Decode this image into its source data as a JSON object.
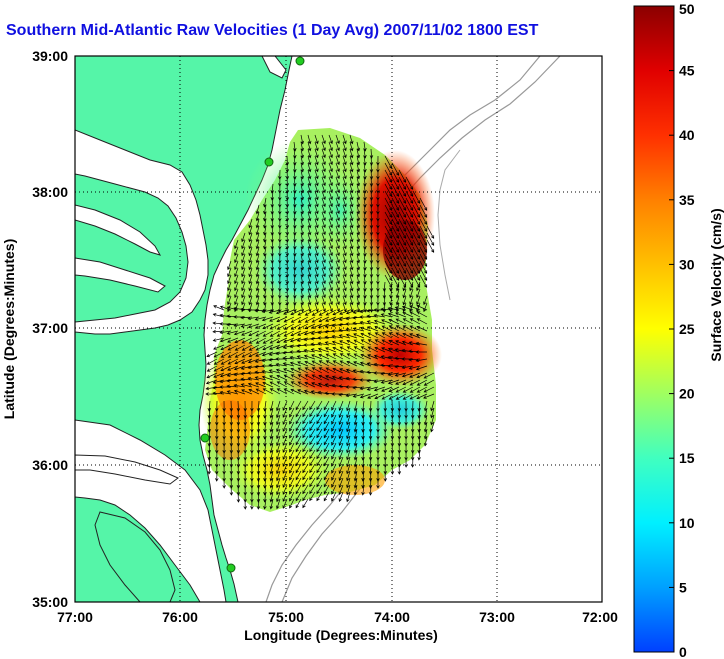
{
  "title": "Southern Mid-Atlantic Raw Velocities (1 Day Avg) 2007/11/02 1800 EST",
  "x_axis": {
    "label": "Longitude (Degrees:Minutes)",
    "ticks": [
      "77:00",
      "76:00",
      "75:00",
      "74:00",
      "73:00",
      "72:00"
    ]
  },
  "y_axis": {
    "label": "Latitude (Degrees:Minutes)",
    "ticks": [
      "39:00",
      "38:00",
      "37:00",
      "36:00",
      "35:00"
    ]
  },
  "colorbar": {
    "label": "Surface Velocity (cm/s)",
    "ticks": [
      "50",
      "45",
      "40",
      "35",
      "30",
      "25",
      "20",
      "15",
      "10",
      "5",
      "0"
    ],
    "min": 0,
    "max": 50,
    "colormap": [
      "#0040ff",
      "#00a0ff",
      "#00f0ff",
      "#40ffc0",
      "#a0ff60",
      "#ffff00",
      "#ffc000",
      "#ff8000",
      "#ff3000",
      "#e00000",
      "#8b0000"
    ]
  },
  "colors": {
    "land": "#55f5a8",
    "coast": "#222222",
    "bathymetry": "#999999",
    "grid": "#000000",
    "title": "#1010e0",
    "station": "#22cc22"
  },
  "map": {
    "lon_range": [
      "77:00W",
      "72:00W"
    ],
    "lat_range": [
      "35:00N",
      "39:00N"
    ],
    "grid": "dotted"
  }
}
